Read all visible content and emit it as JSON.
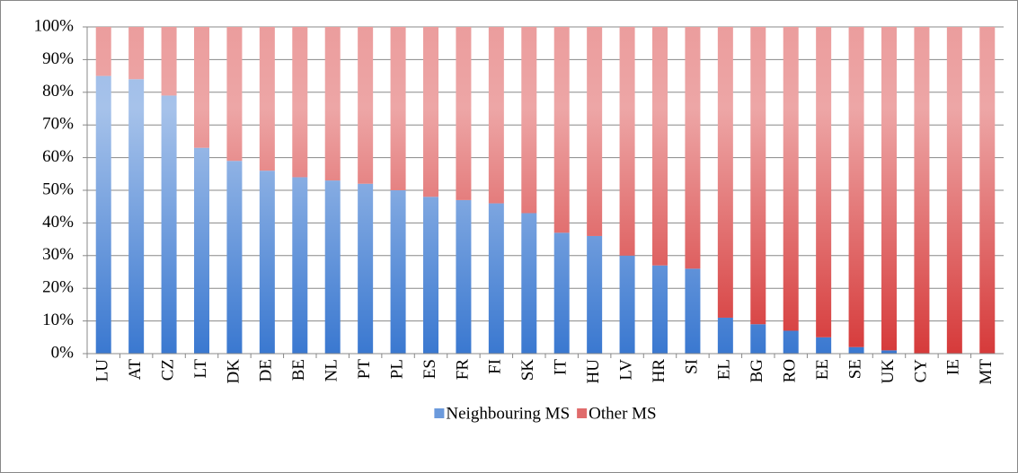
{
  "chart_data": {
    "type": "bar",
    "stacked": true,
    "categories": [
      "LU",
      "AT",
      "CZ",
      "LT",
      "DK",
      "DE",
      "BE",
      "NL",
      "PT",
      "PL",
      "ES",
      "FR",
      "FI",
      "SK",
      "IT",
      "HU",
      "LV",
      "HR",
      "SI",
      "EL",
      "BG",
      "RO",
      "EE",
      "SE",
      "UK",
      "CY",
      "IE",
      "MT"
    ],
    "series": [
      {
        "name": "Neighbouring MS",
        "color": "#3a78d0",
        "values": [
          85,
          84,
          79,
          63,
          59,
          56,
          54,
          53,
          52,
          50,
          48,
          47,
          46,
          43,
          37,
          36,
          30,
          27,
          26,
          11,
          9,
          7,
          5,
          2,
          1,
          0,
          0,
          0
        ]
      },
      {
        "name": "Other MS",
        "color": "#d63a3a",
        "values": [
          15,
          16,
          21,
          37,
          41,
          44,
          46,
          47,
          48,
          50,
          52,
          53,
          54,
          57,
          63,
          64,
          70,
          73,
          74,
          89,
          91,
          93,
          95,
          98,
          99,
          100,
          100,
          100
        ]
      }
    ],
    "ylim": [
      0,
      100
    ],
    "yticks": [
      {
        "value": 0,
        "label": "0%"
      },
      {
        "value": 10,
        "label": "10%"
      },
      {
        "value": 20,
        "label": "20%"
      },
      {
        "value": 30,
        "label": "30%"
      },
      {
        "value": 40,
        "label": "40%"
      },
      {
        "value": 50,
        "label": "50%"
      },
      {
        "value": 60,
        "label": "60%"
      },
      {
        "value": 70,
        "label": "70%"
      },
      {
        "value": 80,
        "label": "80%"
      },
      {
        "value": 90,
        "label": "90%"
      },
      {
        "value": 100,
        "label": "100%"
      }
    ],
    "grid": true,
    "legend": "bottom"
  }
}
